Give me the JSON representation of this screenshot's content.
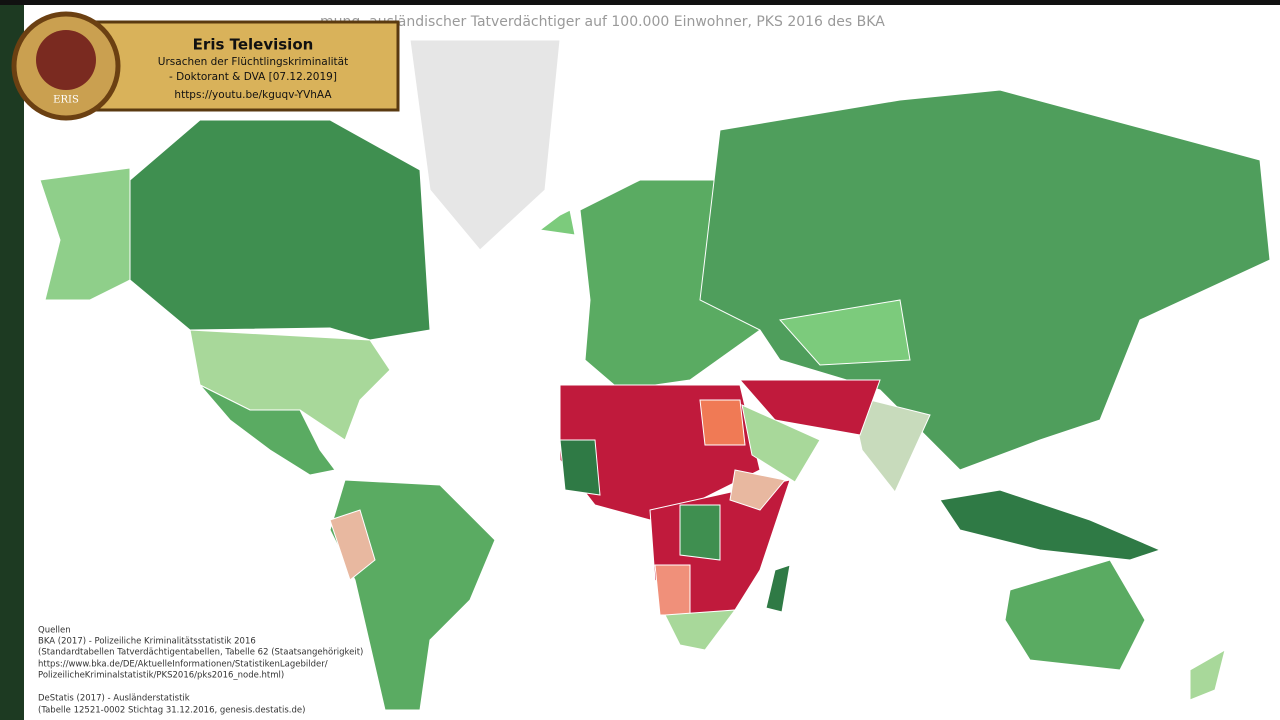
{
  "header": {
    "title": "mung, ausländischer Tatverdächtiger auf 100.000 Einwohner, PKS 2016 des BKA"
  },
  "overlay": {
    "logo": "ERIS",
    "title": "Eris Television",
    "lines": [
      "Ursachen der Flüchtlingskriminalität",
      "- Doktorant & DVA [07.12.2019]",
      "https://youtu.be/kguqv-YVhAA"
    ]
  },
  "sources": {
    "heading": "Quellen",
    "lines": [
      "BKA (2017) - Polizeiliche Kriminalitätsstatistik 2016",
      "(Standardtabellen Tatverdächtigentabellen, Tabelle 62 (Staatsangehörigkeit)",
      "https://www.bka.de/DE/AktuelleInformationen/StatistikenLagebilder/",
      "PolizeilicheKriminalstatistik/PKS2016/pks2016_node.html)",
      "DeStatis (2017) - Ausländerstatistik",
      "(Tabelle 12521-0002 Stichtag 31.12.2016, genesis.destatis.de)"
    ]
  }
}
